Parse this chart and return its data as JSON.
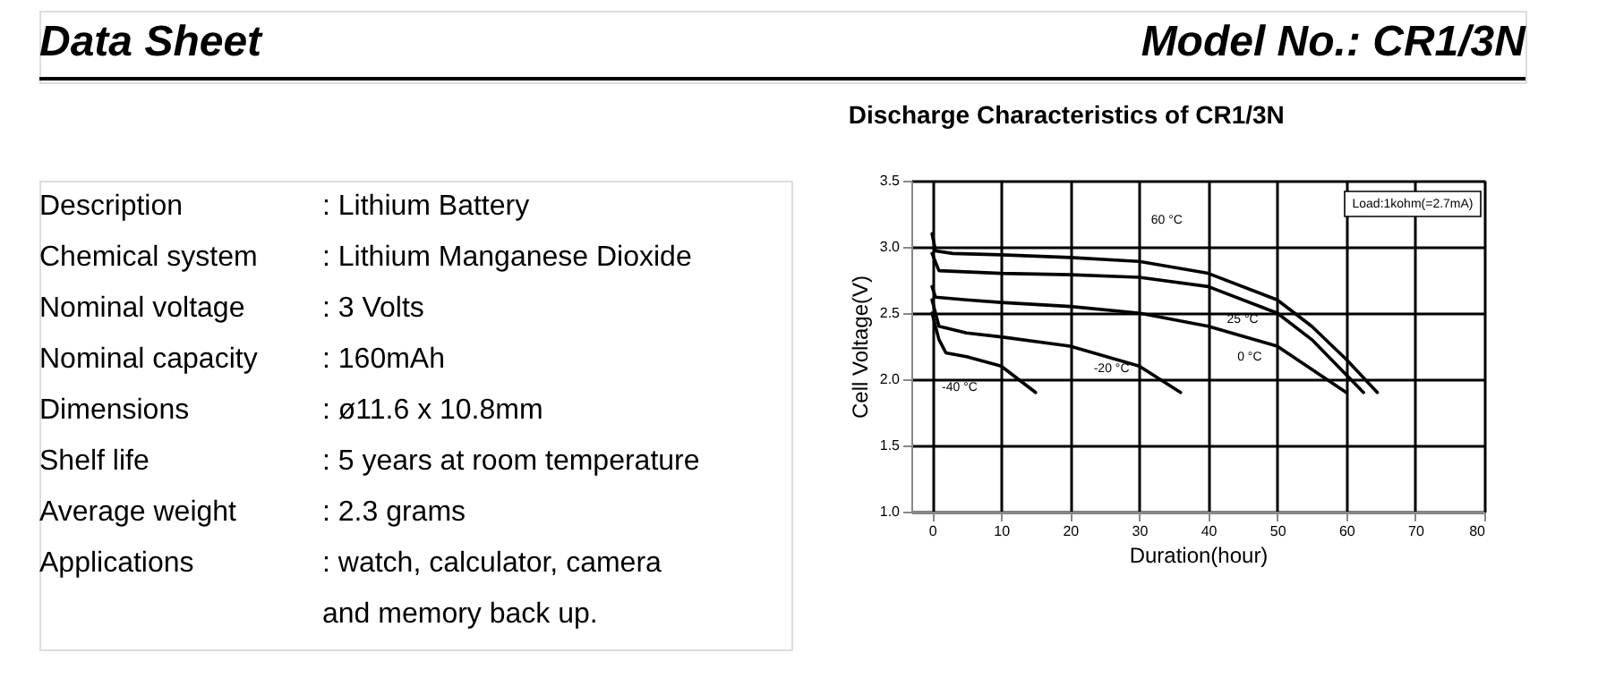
{
  "chart_data": [
    {
      "type": "other",
      "title": "Data Sheet",
      "subtitle": "Model No.: CR1/3N",
      "annotations": [
        "Description",
        ": Lithium Battery",
        "Chemical system",
        ": Lithium Manganese Dioxide",
        "Nominal voltage",
        ": 3 Volts",
        "Nominal capacity",
        ": 160mAh",
        "Dimensions",
        ": ø11.6 x 10.8mm",
        "Shelf life",
        ": 5 years at room temperature",
        "Average weight",
        ": 2.3 grams",
        "Applications",
        ": watch, calculator, camera",
        "and memory back up."
      ]
    },
    {
      "type": "line",
      "title": "Discharge Characteristics of CR1/3N",
      "xlabel": "Duration(hour)",
      "ylabel": "Cell Voltage(V)",
      "xlim": [
        -3,
        80
      ],
      "xticks": [
        0,
        10,
        20,
        30,
        40,
        50,
        60,
        70,
        80
      ],
      "ylim": [
        1.0,
        3.5
      ],
      "yticks": [
        {
          "value": 1.0,
          "label": "1.0"
        },
        1.5,
        {
          "value": 2.0,
          "label": "2.0"
        },
        2.5,
        {
          "value": 3.0,
          "label": "3.0"
        },
        3.5
      ],
      "grid": true,
      "legend": false,
      "marker": "none",
      "line_style": "solid",
      "annotations": [
        "Load:1kohm(=2.7mA)"
      ],
      "series": [
        {
          "name": "60 °C",
          "color": "#000000",
          "x": [
            0,
            0.5,
            3,
            10,
            20,
            30,
            40,
            50,
            55,
            60,
            64.5
          ],
          "values": [
            3.1,
            2.97,
            2.95,
            2.94,
            2.92,
            2.89,
            2.8,
            2.6,
            2.4,
            2.15,
            1.9
          ]
        },
        {
          "name": "25 °C",
          "color": "#000000",
          "x": [
            0,
            1,
            10,
            20,
            30,
            40,
            50,
            55,
            62.5
          ],
          "values": [
            2.95,
            2.82,
            2.8,
            2.79,
            2.77,
            2.7,
            2.5,
            2.3,
            1.9
          ]
        },
        {
          "name": "0 °C",
          "color": "#000000",
          "x": [
            0,
            0.5,
            5,
            10,
            20,
            30,
            40,
            50,
            60
          ],
          "values": [
            2.7,
            2.62,
            2.6,
            2.58,
            2.55,
            2.5,
            2.4,
            2.25,
            1.9
          ]
        },
        {
          "name": "-20 °C",
          "color": "#000000",
          "x": [
            0,
            1,
            5,
            10,
            20,
            30,
            36
          ],
          "values": [
            2.6,
            2.4,
            2.35,
            2.32,
            2.25,
            2.1,
            1.9
          ]
        },
        {
          "name": "-40 °C",
          "color": "#000000",
          "x": [
            0,
            1,
            2,
            5,
            10,
            15
          ],
          "values": [
            2.5,
            2.3,
            2.2,
            2.17,
            2.1,
            1.9
          ]
        }
      ]
    }
  ]
}
